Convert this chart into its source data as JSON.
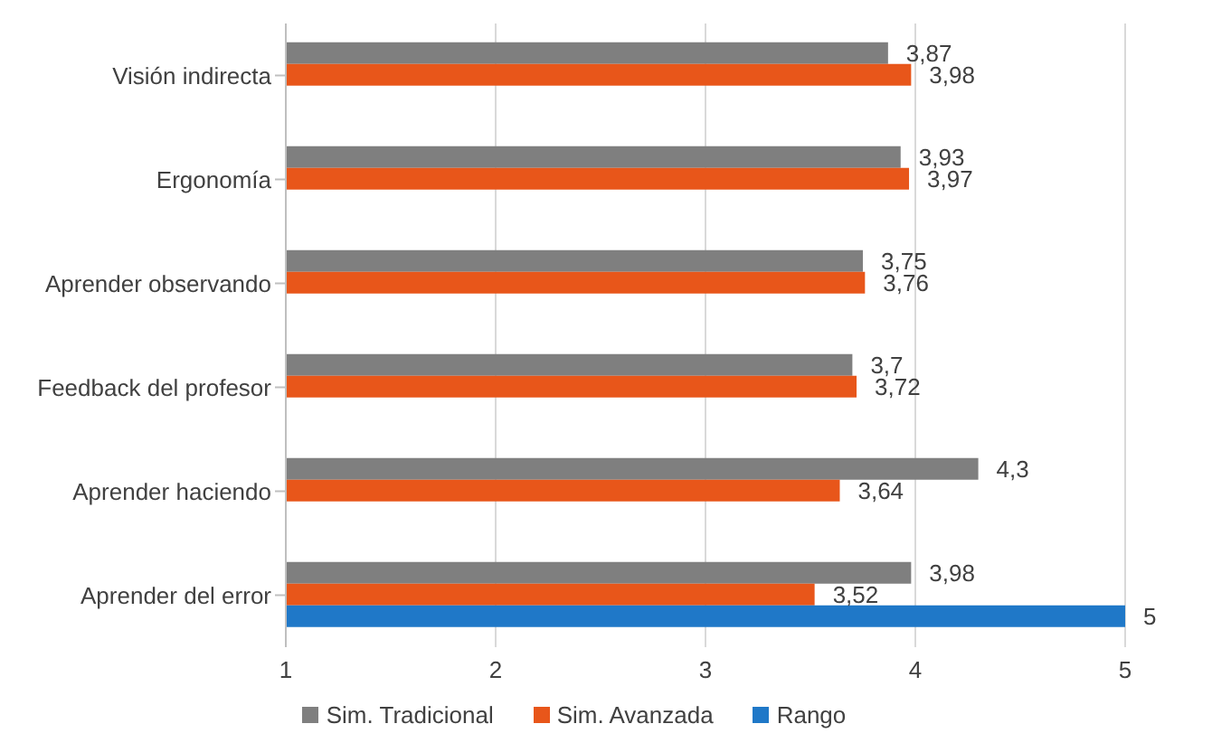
{
  "chart_data": {
    "type": "bar",
    "orientation": "horizontal",
    "categories": [
      "Visión indirecta",
      "Ergonomía",
      "Aprender observando",
      "Feedback del profesor",
      "Aprender haciendo",
      "Aprender del error"
    ],
    "series": [
      {
        "name": "Sim. Tradicional",
        "color": "#7f7f7f",
        "values": [
          3.87,
          3.93,
          3.75,
          3.7,
          4.3,
          3.98
        ],
        "value_labels": [
          "3,87",
          "3,93",
          "3,75",
          "3,7",
          "4,3",
          "3,98"
        ]
      },
      {
        "name": "Sim. Avanzada",
        "color": "#e8561a",
        "values": [
          3.98,
          3.97,
          3.76,
          3.72,
          3.64,
          3.52
        ],
        "value_labels": [
          "3,98",
          "3,97",
          "3,76",
          "3,72",
          "3,64",
          "3,52"
        ]
      },
      {
        "name": "Rango",
        "color": "#1f78c8",
        "values": [
          null,
          null,
          null,
          null,
          null,
          5
        ],
        "value_labels": [
          null,
          null,
          null,
          null,
          null,
          "5"
        ]
      }
    ],
    "xlim": [
      1,
      5
    ],
    "xticks": [
      1,
      2,
      3,
      4,
      5
    ],
    "grid": "x",
    "legend": "bottom"
  }
}
